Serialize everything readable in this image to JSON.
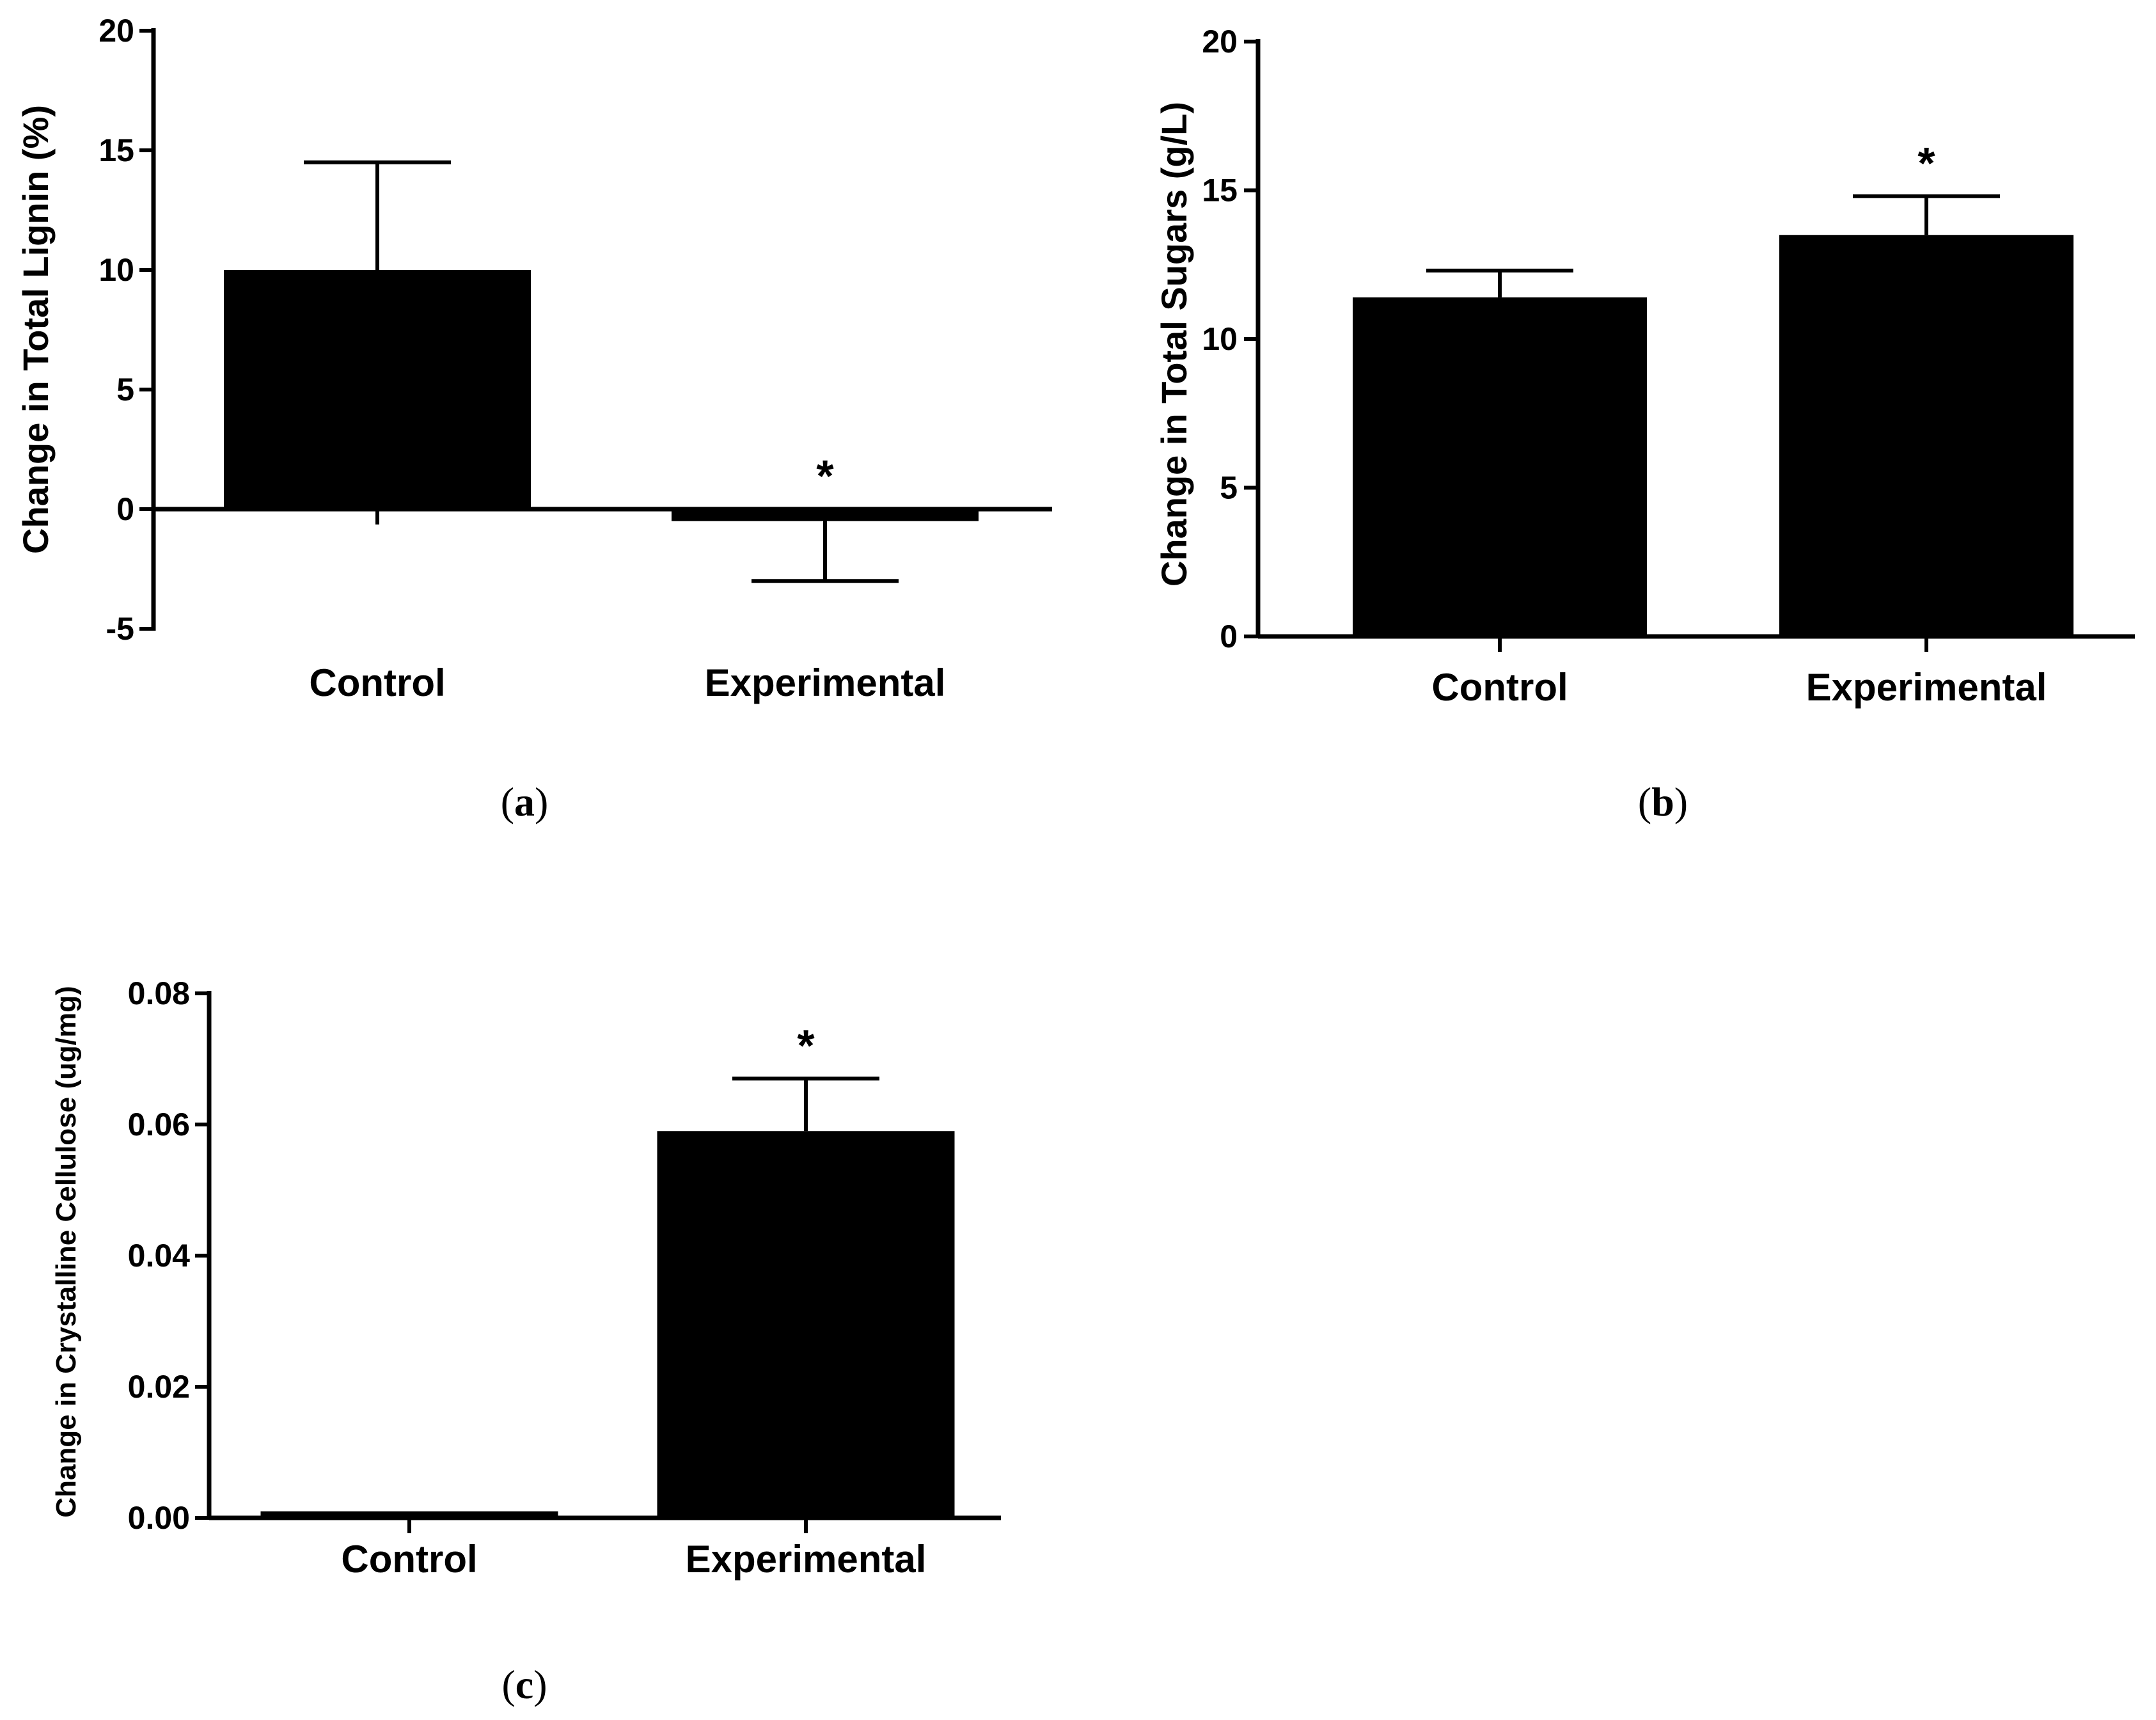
{
  "chart_data": [
    {
      "panel": "a",
      "caption_open": "(",
      "caption_letter": "a",
      "caption_close": ")",
      "type": "bar",
      "ylabel": "Change in Total Lignin (%)",
      "categories": [
        "Control",
        "Experimental"
      ],
      "values": [
        10,
        -0.5
      ],
      "errors": [
        4.5,
        2.5
      ],
      "error_direction": [
        "up",
        "down"
      ],
      "significance": [
        "",
        "*"
      ],
      "ylim": [
        -5,
        20
      ],
      "yticks": [
        -5,
        0,
        5,
        10,
        15,
        20
      ],
      "ytick_labels": [
        "-5",
        "0",
        "5",
        "10",
        "15",
        "20"
      ],
      "grid": false,
      "color": "#000000"
    },
    {
      "panel": "b",
      "caption_open": "(",
      "caption_letter": "b",
      "caption_close": ")",
      "type": "bar",
      "ylabel": "Change in Total Sugars (g/L)",
      "categories": [
        "Control",
        "Experimental"
      ],
      "values": [
        11.4,
        13.5
      ],
      "errors": [
        0.9,
        1.3
      ],
      "error_direction": [
        "up",
        "up"
      ],
      "significance": [
        "",
        "*"
      ],
      "ylim": [
        0,
        20
      ],
      "yticks": [
        0,
        5,
        10,
        15,
        20
      ],
      "ytick_labels": [
        "0",
        "5",
        "10",
        "15",
        "20"
      ],
      "grid": false,
      "color": "#000000"
    },
    {
      "panel": "c",
      "caption_open": "(",
      "caption_letter": "c",
      "caption_close": ")",
      "type": "bar",
      "ylabel": "Change in Crystalline Cellulose  (ug/mg)",
      "categories": [
        "Control",
        "Experimental"
      ],
      "values": [
        0.001,
        0.059
      ],
      "errors": [
        0,
        0.008
      ],
      "error_direction": [
        "up",
        "up"
      ],
      "significance": [
        "",
        "*"
      ],
      "ylim": [
        0,
        0.08
      ],
      "yticks": [
        0,
        0.02,
        0.04,
        0.06,
        0.08
      ],
      "ytick_labels": [
        "0.00",
        "0.02",
        "0.04",
        "0.06",
        "0.08"
      ],
      "grid": false,
      "color": "#000000"
    }
  ]
}
